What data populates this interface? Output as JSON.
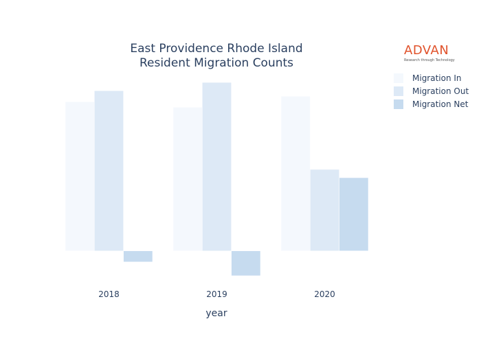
{
  "logo": {
    "word": "ADVAN",
    "tagline": "Research through Technology"
  },
  "chart_data": {
    "type": "bar",
    "title_lines": [
      "East Providence Rhode Island",
      "Resident Migration Counts"
    ],
    "xlabel": "year",
    "ylabel": "",
    "categories": [
      "2018",
      "2019",
      "2020"
    ],
    "series": [
      {
        "name": "Migration In",
        "values": [
          5400,
          5200,
          5600
        ],
        "color": "#f4f8fd"
      },
      {
        "name": "Migration Out",
        "values": [
          5800,
          6100,
          2950
        ],
        "color": "#dde9f6"
      },
      {
        "name": "Migration Net",
        "values": [
          -400,
          -900,
          2650
        ],
        "color": "#c6dbef"
      }
    ],
    "ylim": [
      -1100,
      6600
    ],
    "grid": false,
    "show_yaxis": false,
    "legend_position": "top-right"
  }
}
